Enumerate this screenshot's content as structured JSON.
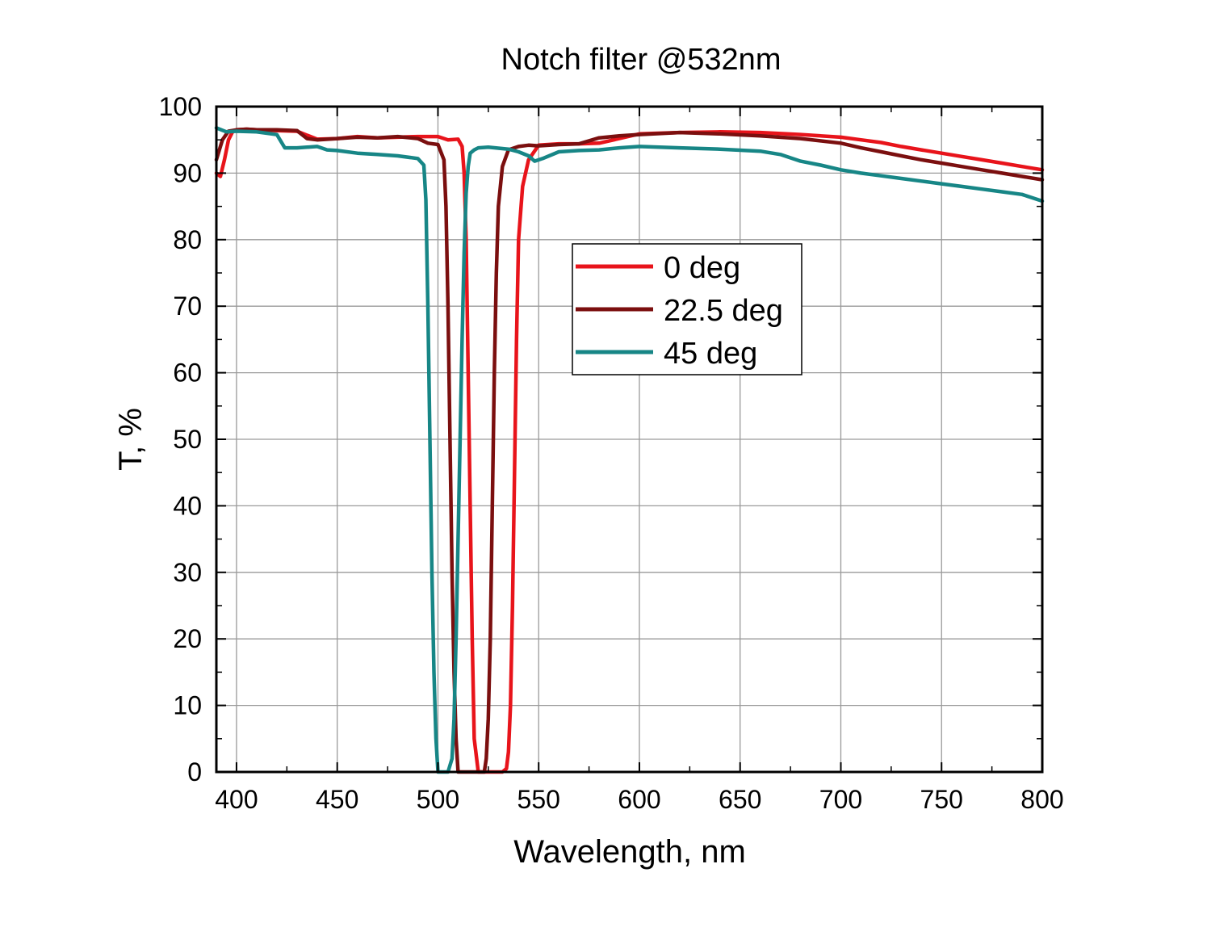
{
  "chart_data": {
    "type": "line",
    "title": "Notch filter @532nm",
    "xlabel": "Wavelength, nm",
    "ylabel": "T, %",
    "xlim": [
      390,
      800
    ],
    "ylim": [
      0,
      100
    ],
    "x_ticks": [
      400,
      450,
      500,
      550,
      600,
      650,
      700,
      750,
      800
    ],
    "y_ticks": [
      0,
      10,
      20,
      30,
      40,
      50,
      60,
      70,
      80,
      90,
      100
    ],
    "grid": true,
    "legend_position": "upper-middle",
    "series": [
      {
        "name": "0 deg",
        "color": "#e8141b",
        "x": [
          390,
          392,
          394,
          396,
          398,
          400,
          405,
          410,
          420,
          430,
          440,
          450,
          460,
          470,
          480,
          490,
          500,
          505,
          510,
          512,
          513,
          514,
          515,
          516,
          517,
          518,
          520,
          525,
          530,
          532,
          534,
          535,
          536,
          537,
          538,
          539,
          540,
          542,
          545,
          550,
          560,
          570,
          580,
          590,
          600,
          620,
          640,
          660,
          680,
          700,
          710,
          720,
          730,
          740,
          750,
          760,
          770,
          780,
          790,
          800
        ],
        "y": [
          90,
          89.5,
          92,
          95,
          96.2,
          96.5,
          96.6,
          96.5,
          96.4,
          96.3,
          95.1,
          95.2,
          95.5,
          95.3,
          95.4,
          95.5,
          95.5,
          95,
          95.1,
          94,
          90,
          80,
          60,
          40,
          20,
          5,
          0,
          0,
          0,
          0,
          0.5,
          3,
          10,
          25,
          45,
          65,
          80,
          88,
          92,
          94.2,
          94.4,
          94.4,
          94.5,
          95.2,
          95.9,
          96.1,
          96.2,
          96.1,
          95.8,
          95.4,
          95,
          94.6,
          94,
          93.5,
          93,
          92.5,
          92,
          91.5,
          91,
          90.5
        ]
      },
      {
        "name": "22.5 deg",
        "color": "#7b0f0f",
        "x": [
          390,
          393,
          396,
          400,
          405,
          410,
          420,
          430,
          435,
          440,
          450,
          460,
          470,
          480,
          490,
          495,
          500,
          503,
          504,
          505,
          506,
          507,
          508,
          509,
          510,
          512,
          515,
          520,
          523,
          524,
          525,
          526,
          527,
          528,
          529,
          530,
          532,
          535,
          540,
          545,
          550,
          560,
          570,
          580,
          590,
          600,
          620,
          640,
          660,
          680,
          700,
          710,
          720,
          730,
          740,
          750,
          760,
          770,
          780,
          790,
          800
        ],
        "y": [
          92,
          95,
          96.3,
          96.5,
          96.6,
          96.5,
          96.5,
          96.4,
          95.2,
          95,
          95.2,
          95.4,
          95.3,
          95.5,
          95.2,
          94.5,
          94.3,
          92,
          85,
          70,
          50,
          30,
          15,
          5,
          0,
          0,
          0,
          0,
          0,
          2,
          8,
          20,
          40,
          60,
          75,
          85,
          91,
          93.5,
          94,
          94.2,
          94.1,
          94.3,
          94.4,
          95.3,
          95.6,
          95.8,
          96.1,
          95.9,
          95.6,
          95.2,
          94.5,
          93.8,
          93.2,
          92.6,
          92,
          91.5,
          91,
          90.5,
          90,
          89.5,
          89
        ]
      },
      {
        "name": "45 deg",
        "color": "#178686",
        "x": [
          390,
          395,
          400,
          410,
          420,
          424,
          430,
          440,
          445,
          450,
          460,
          470,
          480,
          490,
          493,
          494,
          495,
          496,
          497,
          498,
          499,
          500,
          502,
          505,
          507,
          508,
          509,
          510,
          511,
          512,
          513,
          514,
          515,
          516,
          518,
          520,
          525,
          535,
          540,
          545,
          548,
          552,
          560,
          570,
          580,
          590,
          600,
          620,
          640,
          660,
          670,
          680,
          690,
          700,
          710,
          720,
          730,
          740,
          750,
          760,
          770,
          780,
          790,
          800
        ],
        "y": [
          96.8,
          96.2,
          96.3,
          96.2,
          95.8,
          93.8,
          93.8,
          94,
          93.5,
          93.4,
          93,
          92.8,
          92.6,
          92.2,
          91.2,
          86,
          70,
          50,
          30,
          15,
          5,
          0,
          0,
          0,
          2,
          8,
          20,
          35,
          50,
          65,
          78,
          87,
          91,
          93,
          93.5,
          93.8,
          93.9,
          93.6,
          93.2,
          92.6,
          91.8,
          92.2,
          93.2,
          93.4,
          93.5,
          93.8,
          94,
          93.8,
          93.6,
          93.3,
          92.8,
          91.8,
          91.2,
          90.5,
          90,
          89.6,
          89.2,
          88.8,
          88.4,
          88,
          87.6,
          87.2,
          86.8,
          85.8
        ]
      }
    ]
  }
}
